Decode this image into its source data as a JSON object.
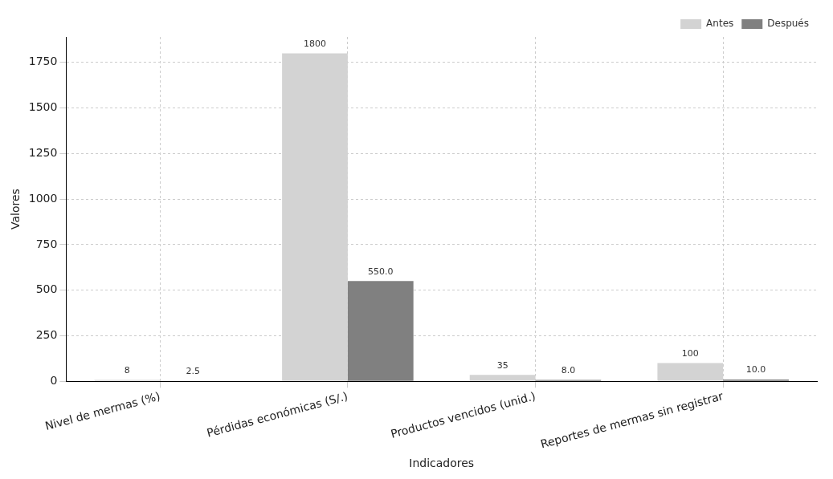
{
  "chart_data": {
    "type": "bar",
    "xlabel": "Indicadores",
    "ylabel": "Valores",
    "categories": [
      "Nivel de mermas (%)",
      "Pérdidas económicas (S/.)",
      "Productos vencidos (unid.)",
      "Reportes de mermas sin registrar"
    ],
    "series": [
      {
        "name": "Antes",
        "color": "#d3d3d3",
        "values": [
          8,
          1800,
          35,
          100
        ],
        "value_labels": [
          "8",
          "1800",
          "35",
          "100"
        ]
      },
      {
        "name": "Después",
        "color": "#808080",
        "values": [
          2.5,
          550,
          8,
          10
        ],
        "value_labels": [
          "2.5",
          "550.0",
          "8.0",
          "10.0"
        ]
      }
    ],
    "ylim": [
      0,
      1890
    ],
    "yticks": [
      0,
      250,
      500,
      750,
      1000,
      1250,
      1500,
      1750
    ],
    "grid": true,
    "legend": "top right"
  }
}
